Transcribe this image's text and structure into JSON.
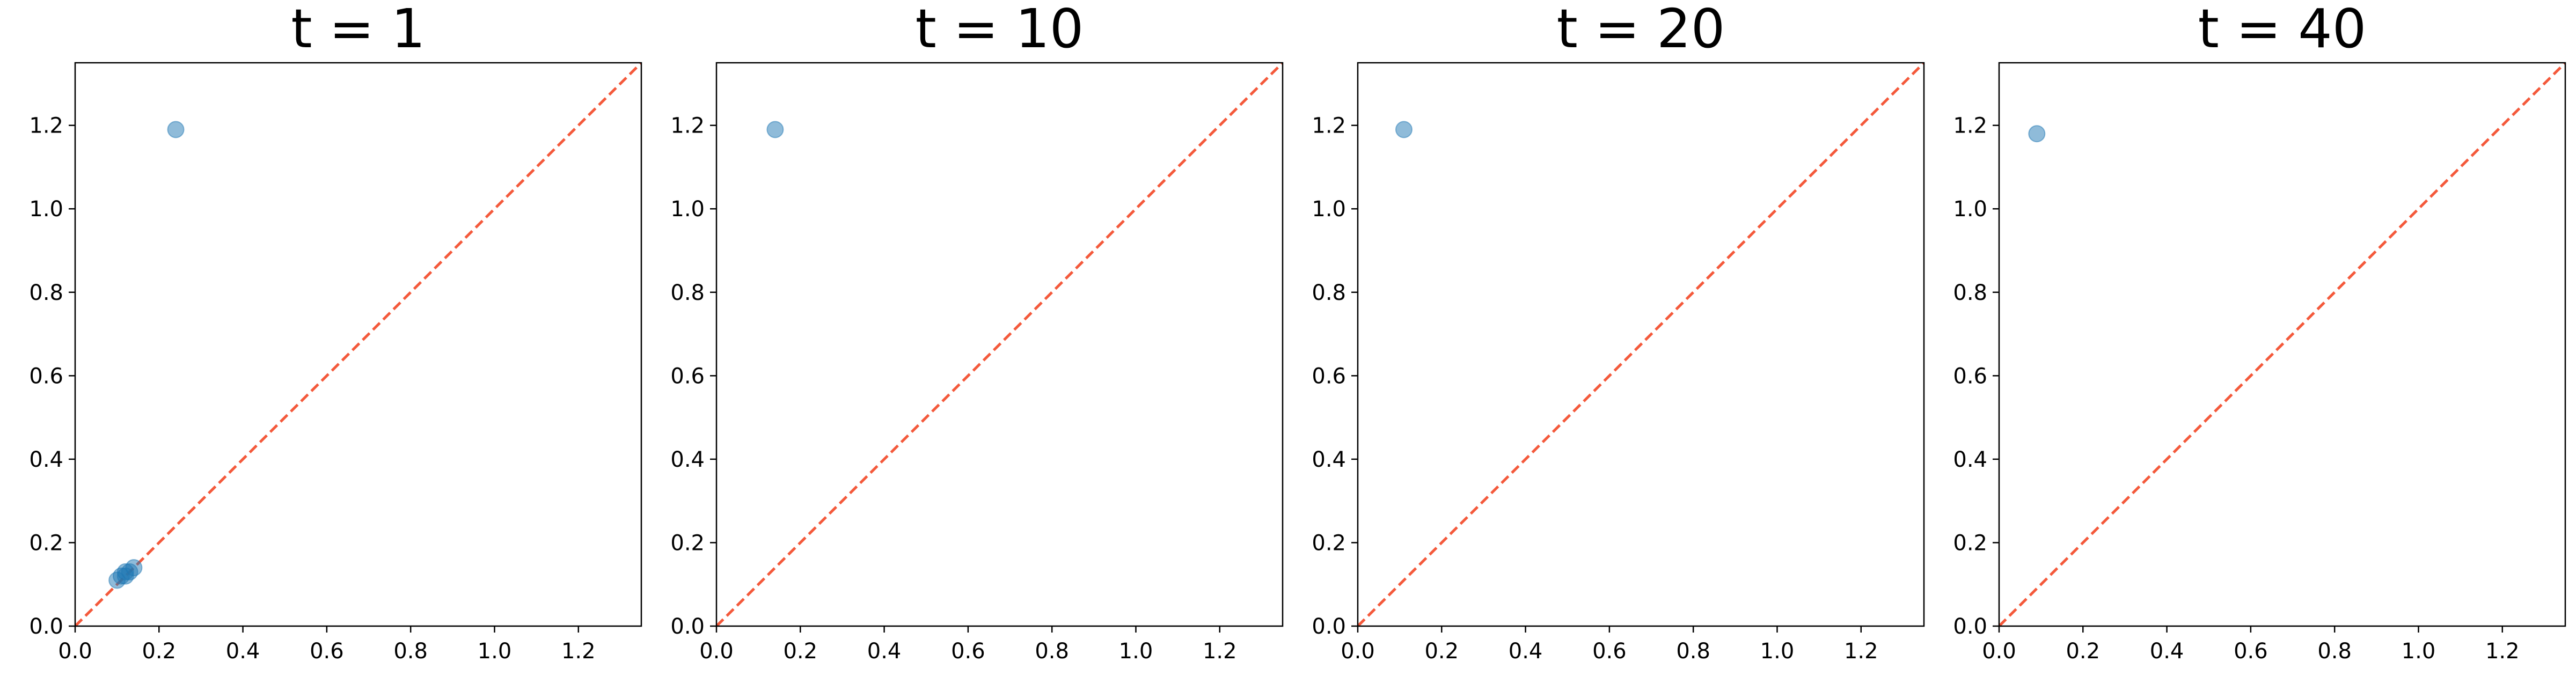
{
  "chart_data": [
    {
      "type": "scatter",
      "title": "t = 1",
      "xlabel": "",
      "ylabel": "",
      "xlim": [
        0.0,
        1.35
      ],
      "ylim": [
        0.0,
        1.35
      ],
      "xticks": [
        "0.0",
        "0.2",
        "0.4",
        "0.6",
        "0.8",
        "1.0",
        "1.2"
      ],
      "yticks": [
        "0.0",
        "0.2",
        "0.4",
        "0.6",
        "0.8",
        "1.0",
        "1.2"
      ],
      "grid": false,
      "reference_line": {
        "from": [
          0.0,
          0.0
        ],
        "to": [
          1.35,
          1.35
        ],
        "style": "dashed"
      },
      "points": [
        {
          "x": 0.24,
          "y": 1.19
        },
        {
          "x": 0.1,
          "y": 0.11
        },
        {
          "x": 0.11,
          "y": 0.12
        },
        {
          "x": 0.12,
          "y": 0.12
        },
        {
          "x": 0.12,
          "y": 0.13
        },
        {
          "x": 0.13,
          "y": 0.13
        },
        {
          "x": 0.14,
          "y": 0.14
        }
      ]
    },
    {
      "type": "scatter",
      "title": "t = 10",
      "xlabel": "",
      "ylabel": "",
      "xlim": [
        0.0,
        1.35
      ],
      "ylim": [
        0.0,
        1.35
      ],
      "xticks": [
        "0.0",
        "0.2",
        "0.4",
        "0.6",
        "0.8",
        "1.0",
        "1.2"
      ],
      "yticks": [
        "0.0",
        "0.2",
        "0.4",
        "0.6",
        "0.8",
        "1.0",
        "1.2"
      ],
      "grid": false,
      "reference_line": {
        "from": [
          0.0,
          0.0
        ],
        "to": [
          1.35,
          1.35
        ],
        "style": "dashed"
      },
      "points": [
        {
          "x": 0.14,
          "y": 1.19
        }
      ]
    },
    {
      "type": "scatter",
      "title": "t = 20",
      "xlabel": "",
      "ylabel": "",
      "xlim": [
        0.0,
        1.35
      ],
      "ylim": [
        0.0,
        1.35
      ],
      "xticks": [
        "0.0",
        "0.2",
        "0.4",
        "0.6",
        "0.8",
        "1.0",
        "1.2"
      ],
      "yticks": [
        "0.0",
        "0.2",
        "0.4",
        "0.6",
        "0.8",
        "1.0",
        "1.2"
      ],
      "grid": false,
      "reference_line": {
        "from": [
          0.0,
          0.0
        ],
        "to": [
          1.35,
          1.35
        ],
        "style": "dashed"
      },
      "points": [
        {
          "x": 0.11,
          "y": 1.19
        }
      ]
    },
    {
      "type": "scatter",
      "title": "t = 40",
      "xlabel": "",
      "ylabel": "",
      "xlim": [
        0.0,
        1.35
      ],
      "ylim": [
        0.0,
        1.35
      ],
      "xticks": [
        "0.0",
        "0.2",
        "0.4",
        "0.6",
        "0.8",
        "1.0",
        "1.2"
      ],
      "yticks": [
        "0.0",
        "0.2",
        "0.4",
        "0.6",
        "0.8",
        "1.0",
        "1.2"
      ],
      "grid": false,
      "reference_line": {
        "from": [
          0.0,
          0.0
        ],
        "to": [
          1.35,
          1.35
        ],
        "style": "dashed"
      },
      "points": [
        {
          "x": 0.09,
          "y": 1.18
        }
      ]
    }
  ],
  "colors": {
    "point_fill": "#1f77b4",
    "reference_line": "#f4593b",
    "axis": "#000000",
    "background": "#ffffff"
  }
}
